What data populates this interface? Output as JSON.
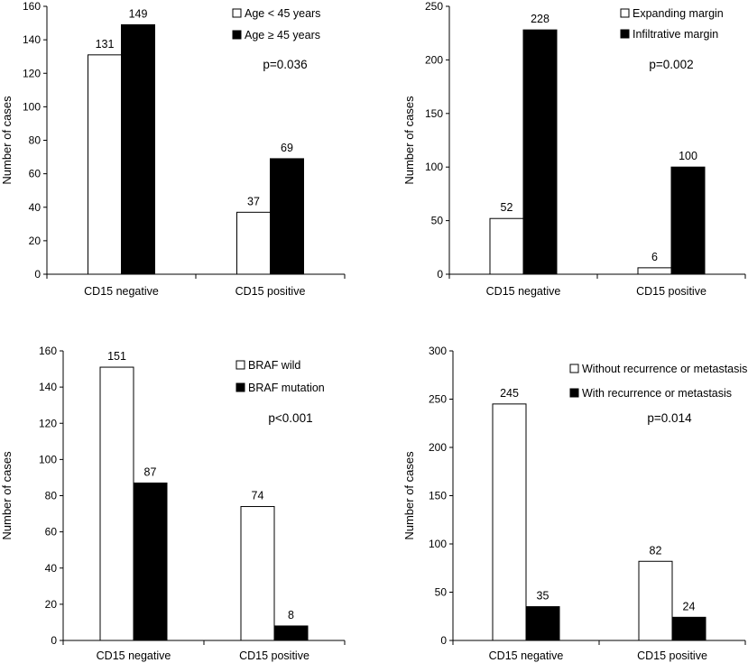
{
  "chart_data": [
    {
      "type": "bar",
      "categories": [
        "CD15 negative",
        "CD15 positive"
      ],
      "series": [
        {
          "name": "Age  < 45 years",
          "values": [
            131,
            37
          ],
          "color": "#ffffff"
        },
        {
          "name": "Age  ≥ 45 years",
          "values": [
            149,
            69
          ],
          "color": "#000000"
        }
      ],
      "value_labels": [
        [
          "131",
          "37"
        ],
        [
          "149",
          "69"
        ]
      ],
      "annotation": "p=0.036",
      "ylabel": "Number of cases",
      "ylim": [
        0,
        160
      ],
      "yticks": [
        0,
        20,
        40,
        60,
        80,
        100,
        120,
        140,
        160
      ],
      "legend": "top-right",
      "grid": false
    },
    {
      "type": "bar",
      "categories": [
        "CD15 negative",
        "CD15 positive"
      ],
      "series": [
        {
          "name": "Expanding margin",
          "values": [
            52,
            6
          ],
          "color": "#ffffff"
        },
        {
          "name": "Infiltrative margin",
          "values": [
            228,
            100
          ],
          "color": "#000000"
        }
      ],
      "value_labels": [
        [
          "52",
          "6"
        ],
        [
          "228",
          "100"
        ]
      ],
      "annotation": "p=0.002",
      "ylabel": "Number of cases",
      "ylim": [
        0,
        250
      ],
      "yticks": [
        0,
        50,
        100,
        150,
        200,
        250
      ],
      "legend": "top-right",
      "grid": false
    },
    {
      "type": "bar",
      "categories": [
        "CD15 negative",
        "CD15 positive"
      ],
      "series": [
        {
          "name": "BRAF wild",
          "values": [
            151,
            74
          ],
          "color": "#ffffff"
        },
        {
          "name": "BRAF mutation",
          "values": [
            87,
            8
          ],
          "color": "#000000"
        }
      ],
      "value_labels": [
        [
          "151",
          "74"
        ],
        [
          "87",
          "8"
        ]
      ],
      "annotation": "p<0.001",
      "ylabel": "Number  of cases",
      "ylim": [
        0,
        160
      ],
      "yticks": [
        0,
        20,
        40,
        60,
        80,
        100,
        120,
        140,
        160
      ],
      "legend": "top-right",
      "grid": false
    },
    {
      "type": "bar",
      "categories": [
        "CD15 negative",
        "CD15 positive"
      ],
      "series": [
        {
          "name": "Without recurrence or metastasis",
          "values": [
            245,
            82
          ],
          "color": "#ffffff"
        },
        {
          "name": "With  recurrence or metastasis",
          "values": [
            35,
            24
          ],
          "color": "#000000"
        }
      ],
      "value_labels": [
        [
          "245",
          "82"
        ],
        [
          "35",
          "24"
        ]
      ],
      "annotation": "p=0.014",
      "ylabel": "Number of cases",
      "ylim": [
        0,
        300
      ],
      "yticks": [
        0,
        50,
        100,
        150,
        200,
        250,
        300
      ],
      "legend": "top-right",
      "grid": false
    }
  ]
}
